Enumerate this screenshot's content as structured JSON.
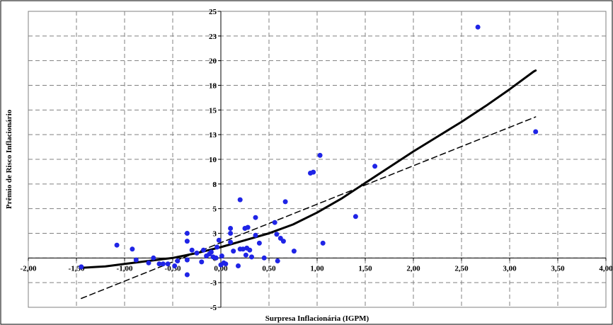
{
  "chart_data": {
    "type": "scatter",
    "title": "",
    "xlabel": "Surpresa Inflacionária (IGPM)",
    "ylabel": "Prêmio de Risco Inflacionário",
    "xlim": [
      -2.0,
      4.0
    ],
    "ylim": [
      -5,
      25
    ],
    "x_ticks": [
      -2.0,
      -1.5,
      -1.0,
      -0.5,
      0.0,
      0.5,
      1.0,
      1.5,
      2.0,
      2.5,
      3.0,
      3.5,
      4.0
    ],
    "x_tick_labels": [
      "-2,00",
      "-1,50",
      "-1,00",
      "-0,50",
      "0,00",
      "0,50",
      "1,00",
      "1,50",
      "2,00",
      "2,50",
      "3,00",
      "3,50",
      "4,00"
    ],
    "y_ticks": [
      -5,
      -2.5,
      0,
      2.5,
      5,
      7.5,
      10,
      12.5,
      15,
      17.5,
      20,
      22.5,
      25
    ],
    "y_tick_labels": [
      "-5",
      "-3",
      "0",
      "3",
      "5",
      "8",
      "10",
      "13",
      "15",
      "18",
      "20",
      "23",
      "25"
    ],
    "grid": true,
    "series": [
      {
        "kind": "scatter",
        "color": "#1f24e6",
        "points": [
          [
            -1.45,
            -0.9
          ],
          [
            -1.08,
            1.3
          ],
          [
            -0.92,
            0.9
          ],
          [
            -0.88,
            -0.2
          ],
          [
            -0.75,
            -0.5
          ],
          [
            -0.7,
            0.0
          ],
          [
            -0.64,
            -0.6
          ],
          [
            -0.6,
            -0.6
          ],
          [
            -0.55,
            -0.6
          ],
          [
            -0.48,
            -0.8
          ],
          [
            -0.45,
            -0.3
          ],
          [
            -0.35,
            2.5
          ],
          [
            -0.35,
            1.7
          ],
          [
            -0.35,
            -0.2
          ],
          [
            -0.35,
            -1.7
          ],
          [
            -0.3,
            0.8
          ],
          [
            -0.25,
            0.5
          ],
          [
            -0.2,
            -0.4
          ],
          [
            -0.18,
            0.8
          ],
          [
            -0.15,
            0.2
          ],
          [
            -0.12,
            0.4
          ],
          [
            -0.1,
            0.6
          ],
          [
            -0.08,
            0.1
          ],
          [
            -0.05,
            0.0
          ],
          [
            -0.04,
            1.1
          ],
          [
            -0.02,
            1.8
          ],
          [
            0.0,
            -0.7
          ],
          [
            0.01,
            0.2
          ],
          [
            0.03,
            -0.5
          ],
          [
            0.05,
            -0.6
          ],
          [
            0.1,
            2.5
          ],
          [
            0.1,
            1.6
          ],
          [
            0.1,
            3.0
          ],
          [
            0.13,
            0.7
          ],
          [
            0.18,
            -0.8
          ],
          [
            0.2,
            0.9
          ],
          [
            0.2,
            5.9
          ],
          [
            0.23,
            0.9
          ],
          [
            0.25,
            3.0
          ],
          [
            0.26,
            0.3
          ],
          [
            0.27,
            1.0
          ],
          [
            0.28,
            3.1
          ],
          [
            0.3,
            0.8
          ],
          [
            0.32,
            0.1
          ],
          [
            0.36,
            4.1
          ],
          [
            0.36,
            2.3
          ],
          [
            0.4,
            1.5
          ],
          [
            0.45,
            0.0
          ],
          [
            0.56,
            3.6
          ],
          [
            0.58,
            2.4
          ],
          [
            0.59,
            -0.3
          ],
          [
            0.62,
            2.0
          ],
          [
            0.65,
            1.7
          ],
          [
            0.67,
            5.7
          ],
          [
            0.76,
            0.7
          ],
          [
            0.93,
            8.6
          ],
          [
            0.96,
            8.7
          ],
          [
            1.03,
            10.4
          ],
          [
            1.06,
            1.5
          ],
          [
            1.4,
            4.2
          ],
          [
            1.6,
            9.3
          ],
          [
            2.67,
            23.4
          ],
          [
            3.27,
            12.8
          ]
        ]
      },
      {
        "kind": "line",
        "style": "solid",
        "color": "#000000",
        "points": [
          [
            -1.45,
            -1.0
          ],
          [
            -1.2,
            -0.85
          ],
          [
            -1.0,
            -0.6
          ],
          [
            -0.75,
            -0.3
          ],
          [
            -0.5,
            0.0
          ],
          [
            -0.25,
            0.5
          ],
          [
            0.0,
            1.1
          ],
          [
            0.25,
            1.8
          ],
          [
            0.5,
            2.5
          ],
          [
            0.75,
            3.4
          ],
          [
            1.0,
            4.6
          ],
          [
            1.25,
            6.0
          ],
          [
            1.5,
            7.6
          ],
          [
            1.75,
            9.2
          ],
          [
            2.0,
            10.8
          ],
          [
            2.25,
            12.3
          ],
          [
            2.5,
            13.8
          ],
          [
            2.75,
            15.4
          ],
          [
            3.0,
            17.1
          ],
          [
            3.25,
            18.9
          ],
          [
            3.27,
            19.0
          ]
        ]
      },
      {
        "kind": "line",
        "style": "dashed",
        "color": "#000000",
        "points": [
          [
            -1.45,
            -4.1
          ],
          [
            3.27,
            14.3
          ]
        ]
      }
    ]
  }
}
